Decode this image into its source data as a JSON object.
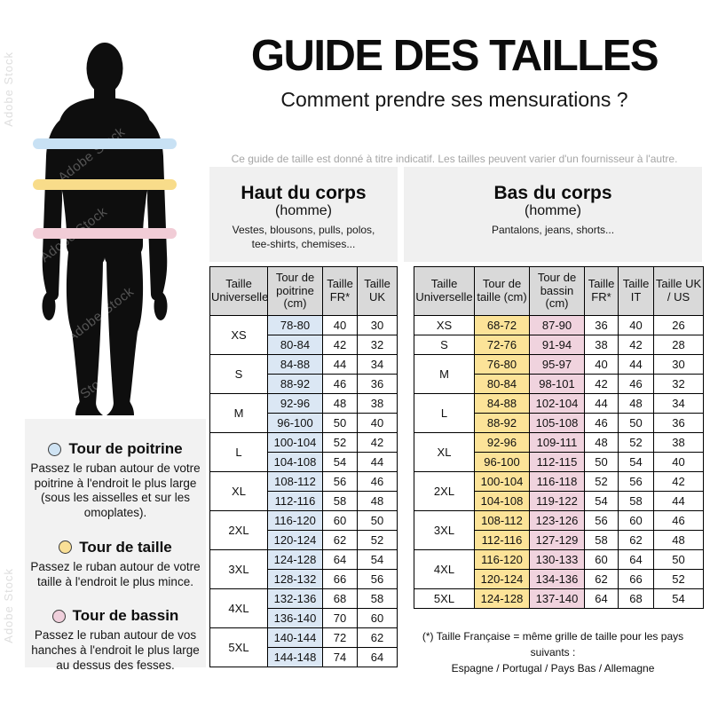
{
  "watermark": {
    "text": "Adobe Stock"
  },
  "header": {
    "title": "GUIDE DES TAILLES",
    "subtitle": "Comment prendre ses mensurations ?",
    "disclaimer": "Ce guide de taille est donné à titre indicatif. Les tailles peuvent varier d'un fournisseur à l'autre."
  },
  "figure": {
    "bands": [
      {
        "name": "chest",
        "color": "#c8e1f4"
      },
      {
        "name": "waist",
        "color": "#f8dc8a"
      },
      {
        "name": "hips",
        "color": "#f1ccd6"
      }
    ]
  },
  "legend": {
    "items": [
      {
        "label": "Tour de poitrine",
        "color": "#cfe3f3",
        "description": "Passez le ruban autour de votre poitrine à l'endroit le plus large (sous les aisselles et sur les omoplates)."
      },
      {
        "label": "Tour de taille",
        "color": "#f9df96",
        "description": "Passez le ruban autour de votre taille à l'endroit le plus mince."
      },
      {
        "label": "Tour de bassin",
        "color": "#efcfdb",
        "description": "Passez le ruban autour de vos hanches à l'endroit le plus large au dessus des fesses."
      }
    ]
  },
  "tables": [
    {
      "title": "Haut du corps",
      "subtitle": "(homme)",
      "categories": "Vestes, blousons, pulls, polos, tee-shirts, chemises...",
      "columns": [
        "Taille Universelle",
        "Tour de poitrine (cm)",
        "Taille FR*",
        "Taille UK"
      ],
      "column_colors": [
        null,
        "#dbe7f4",
        null,
        null
      ],
      "sizes": [
        {
          "size": "XS",
          "rows": [
            [
              "78-80",
              "40",
              "30"
            ],
            [
              "80-84",
              "42",
              "32"
            ]
          ]
        },
        {
          "size": "S",
          "rows": [
            [
              "84-88",
              "44",
              "34"
            ],
            [
              "88-92",
              "46",
              "36"
            ]
          ]
        },
        {
          "size": "M",
          "rows": [
            [
              "92-96",
              "48",
              "38"
            ],
            [
              "96-100",
              "50",
              "40"
            ]
          ]
        },
        {
          "size": "L",
          "rows": [
            [
              "100-104",
              "52",
              "42"
            ],
            [
              "104-108",
              "54",
              "44"
            ]
          ]
        },
        {
          "size": "XL",
          "rows": [
            [
              "108-112",
              "56",
              "46"
            ],
            [
              "112-116",
              "58",
              "48"
            ]
          ]
        },
        {
          "size": "2XL",
          "rows": [
            [
              "116-120",
              "60",
              "50"
            ],
            [
              "120-124",
              "62",
              "52"
            ]
          ]
        },
        {
          "size": "3XL",
          "rows": [
            [
              "124-128",
              "64",
              "54"
            ],
            [
              "128-132",
              "66",
              "56"
            ]
          ]
        },
        {
          "size": "4XL",
          "rows": [
            [
              "132-136",
              "68",
              "58"
            ],
            [
              "136-140",
              "70",
              "60"
            ]
          ]
        },
        {
          "size": "5XL",
          "rows": [
            [
              "140-144",
              "72",
              "62"
            ],
            [
              "144-148",
              "74",
              "64"
            ]
          ]
        }
      ]
    },
    {
      "title": "Bas du corps",
      "subtitle": "(homme)",
      "categories": "Pantalons, jeans, shorts...",
      "columns": [
        "Taille Universelle",
        "Tour de taille (cm)",
        "Tour de bassin (cm)",
        "Taille FR*",
        "Taille IT",
        "Taille UK / US"
      ],
      "column_colors": [
        null,
        "#fce398",
        "#f0d3de",
        null,
        null,
        null
      ],
      "sizes": [
        {
          "size": "XS",
          "rows": [
            [
              "68-72",
              "87-90",
              "36",
              "40",
              "26"
            ]
          ]
        },
        {
          "size": "S",
          "rows": [
            [
              "72-76",
              "91-94",
              "38",
              "42",
              "28"
            ]
          ]
        },
        {
          "size": "M",
          "rows": [
            [
              "76-80",
              "95-97",
              "40",
              "44",
              "30"
            ],
            [
              "80-84",
              "98-101",
              "42",
              "46",
              "32"
            ]
          ]
        },
        {
          "size": "L",
          "rows": [
            [
              "84-88",
              "102-104",
              "44",
              "48",
              "34"
            ],
            [
              "88-92",
              "105-108",
              "46",
              "50",
              "36"
            ]
          ]
        },
        {
          "size": "XL",
          "rows": [
            [
              "92-96",
              "109-111",
              "48",
              "52",
              "38"
            ],
            [
              "96-100",
              "112-115",
              "50",
              "54",
              "40"
            ]
          ]
        },
        {
          "size": "2XL",
          "rows": [
            [
              "100-104",
              "116-118",
              "52",
              "56",
              "42"
            ],
            [
              "104-108",
              "119-122",
              "54",
              "58",
              "44"
            ]
          ]
        },
        {
          "size": "3XL",
          "rows": [
            [
              "108-112",
              "123-126",
              "56",
              "60",
              "46"
            ],
            [
              "112-116",
              "127-129",
              "58",
              "62",
              "48"
            ]
          ]
        },
        {
          "size": "4XL",
          "rows": [
            [
              "116-120",
              "130-133",
              "60",
              "64",
              "50"
            ],
            [
              "120-124",
              "134-136",
              "62",
              "66",
              "52"
            ]
          ]
        },
        {
          "size": "5XL",
          "rows": [
            [
              "124-128",
              "137-140",
              "64",
              "68",
              "54"
            ]
          ]
        }
      ]
    }
  ],
  "footnote": {
    "line1": "(*) Taille Française = même grille de taille pour les pays suivants :",
    "line2": "Espagne / Portugal / Pays Bas / Allemagne"
  }
}
